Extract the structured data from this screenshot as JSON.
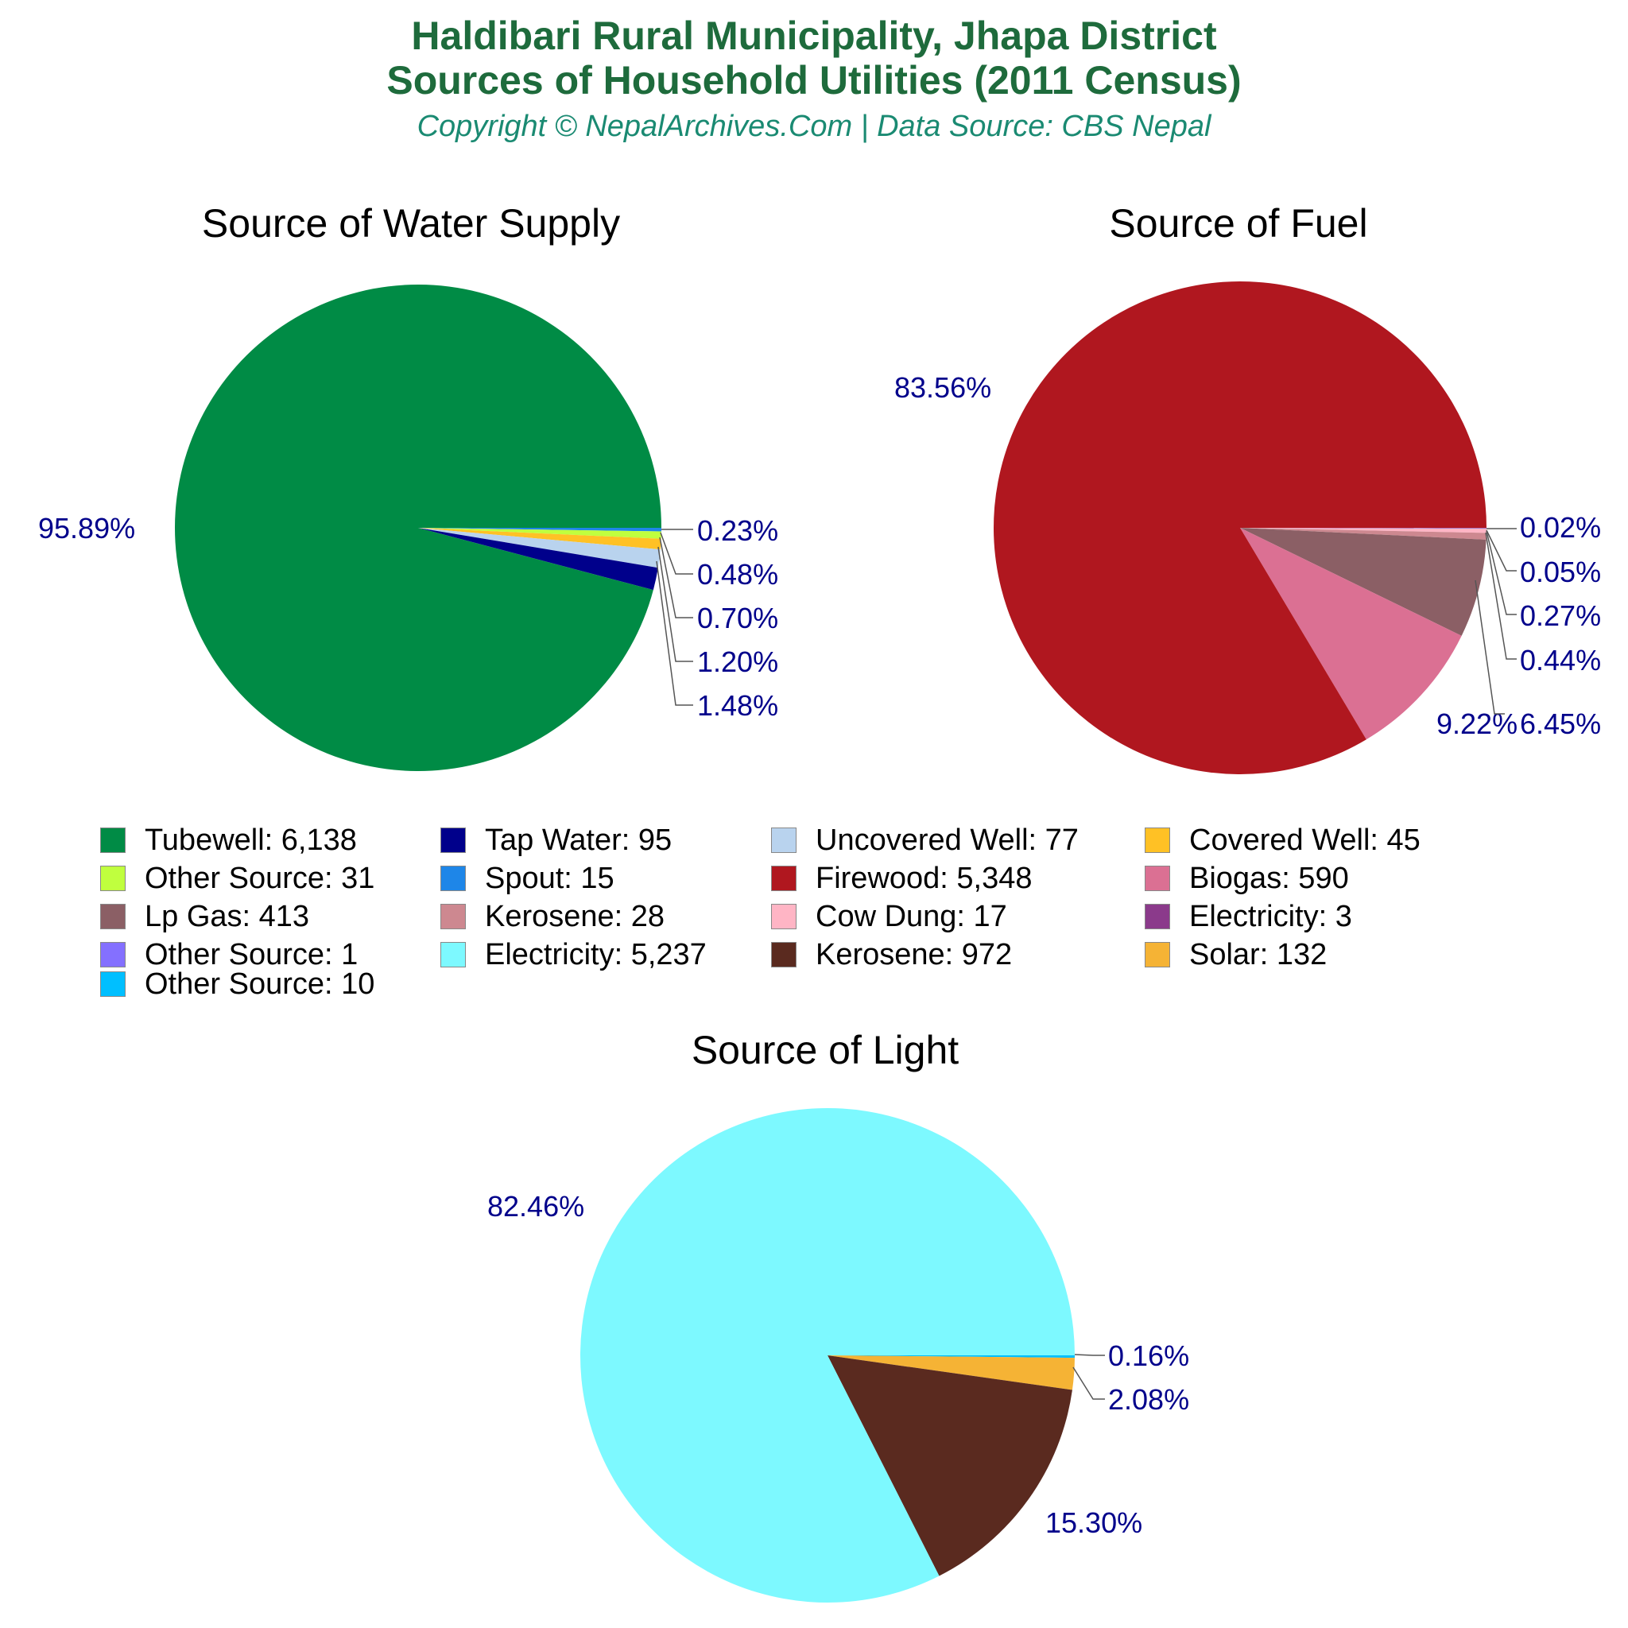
{
  "header": {
    "title_line1": "Haldibari Rural Municipality, Jhapa District",
    "title_line2": "Sources of Household Utilities (2011 Census)",
    "copyright": "Copyright © NepalArchives.Com | Data Source: CBS Nepal"
  },
  "charts": {
    "water": {
      "title": "Source of Water Supply"
    },
    "fuel": {
      "title": "Source of Fuel"
    },
    "light": {
      "title": "Source of Light"
    }
  },
  "legend": [
    {
      "label": "Tubewell: 6,138",
      "color": "#008b45"
    },
    {
      "label": "Tap Water: 95",
      "color": "#00008b"
    },
    {
      "label": "Uncovered Well: 77",
      "color": "#b9d3ee"
    },
    {
      "label": "Covered Well: 45",
      "color": "#ffc125"
    },
    {
      "label": "Other Source: 31",
      "color": "#c0ff3e"
    },
    {
      "label": "Spout: 15",
      "color": "#1e86e8"
    },
    {
      "label": "Firewood: 5,348",
      "color": "#b0171f"
    },
    {
      "label": "Biogas: 590",
      "color": "#db7093"
    },
    {
      "label": "Lp Gas: 413",
      "color": "#8b5f65"
    },
    {
      "label": "Kerosene: 28",
      "color": "#cd8890"
    },
    {
      "label": "Cow Dung: 17",
      "color": "#ffb5c5"
    },
    {
      "label": "Electricity: 3",
      "color": "#8b3a8b"
    },
    {
      "label": "Other Source: 1",
      "color": "#8470ff"
    },
    {
      "label": "Electricity: 5,237",
      "color": "#7df9ff"
    },
    {
      "label": "Kerosene: 972",
      "color": "#5a2a1f"
    },
    {
      "label": "Solar: 132",
      "color": "#f5b335"
    },
    {
      "label": "Other Source: 10",
      "color": "#00bfff"
    }
  ],
  "chart_data": [
    {
      "type": "pie",
      "title": "Source of Water Supply",
      "categories": [
        "Tubewell",
        "Tap Water",
        "Uncovered Well",
        "Covered Well",
        "Other Source",
        "Spout"
      ],
      "values": [
        6138,
        95,
        77,
        45,
        31,
        15
      ],
      "percent_labels": [
        "95.89%",
        "1.48%",
        "1.20%",
        "0.70%",
        "0.48%",
        "0.23%"
      ],
      "colors": [
        "#008b45",
        "#00008b",
        "#b9d3ee",
        "#ffc125",
        "#c0ff3e",
        "#1e86e8"
      ]
    },
    {
      "type": "pie",
      "title": "Source of Fuel",
      "categories": [
        "Firewood",
        "Biogas",
        "Lp Gas",
        "Kerosene",
        "Cow Dung",
        "Electricity",
        "Other Source"
      ],
      "values": [
        5348,
        590,
        413,
        28,
        17,
        3,
        1
      ],
      "percent_labels": [
        "83.56%",
        "9.22%",
        "6.45%",
        "0.44%",
        "0.27%",
        "0.05%",
        "0.02%"
      ],
      "colors": [
        "#b0171f",
        "#db7093",
        "#8b5f65",
        "#cd8890",
        "#ffb5c5",
        "#8b3a8b",
        "#8470ff"
      ]
    },
    {
      "type": "pie",
      "title": "Source of Light",
      "categories": [
        "Electricity",
        "Kerosene",
        "Solar",
        "Other Source"
      ],
      "values": [
        5237,
        972,
        132,
        10
      ],
      "percent_labels": [
        "82.46%",
        "15.30%",
        "2.08%",
        "0.16%"
      ],
      "colors": [
        "#7df9ff",
        "#5a2a1f",
        "#f5b335",
        "#00bfff"
      ]
    }
  ]
}
